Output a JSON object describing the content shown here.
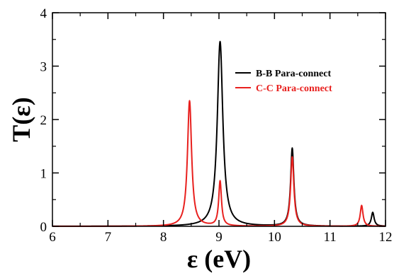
{
  "chart_data": {
    "type": "line",
    "xlabel": "ε (eV)",
    "ylabel": "T(ε)",
    "xlim": [
      6,
      12
    ],
    "ylim": [
      0,
      4
    ],
    "xticks": [
      6,
      7,
      8,
      9,
      10,
      11,
      12
    ],
    "yticks": [
      0,
      1,
      2,
      3,
      4
    ],
    "grid": false,
    "legend_position": "top-right",
    "series": [
      {
        "name": "B-B Para-connect",
        "color": "#000000",
        "peaks": [
          {
            "x": 9.02,
            "y": 3.46,
            "width": 0.06
          },
          {
            "x": 10.32,
            "y": 1.46,
            "width": 0.035
          },
          {
            "x": 11.77,
            "y": 0.26,
            "width": 0.03
          }
        ]
      },
      {
        "name": "C-C Para-connect",
        "color": "#e8201e",
        "peaks": [
          {
            "x": 8.47,
            "y": 2.35,
            "width": 0.045
          },
          {
            "x": 9.02,
            "y": 0.84,
            "width": 0.03
          },
          {
            "x": 10.32,
            "y": 1.3,
            "width": 0.035
          },
          {
            "x": 11.57,
            "y": 0.39,
            "width": 0.03
          }
        ]
      }
    ]
  }
}
